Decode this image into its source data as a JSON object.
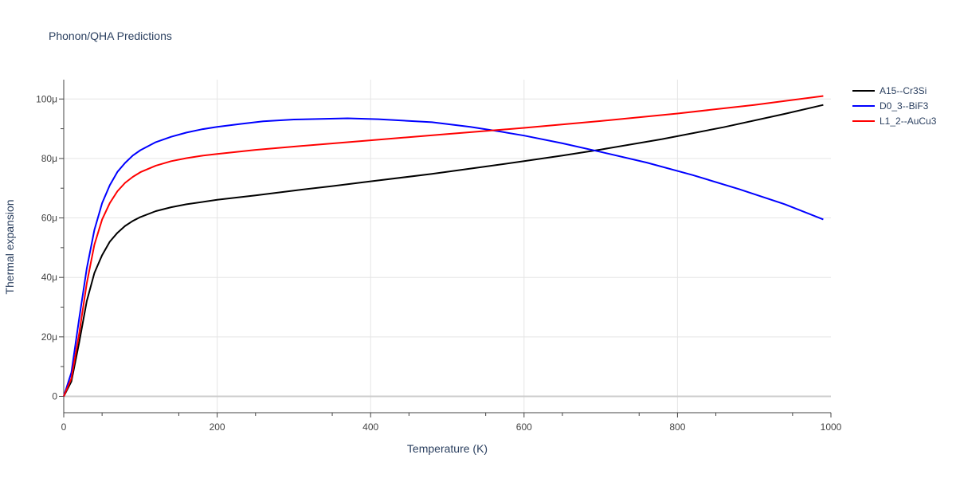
{
  "chart_data": {
    "type": "line",
    "title": "Phonon/QHA Predictions",
    "xlabel": "Temperature (K)",
    "ylabel": "Thermal expansion",
    "xlim": [
      0,
      1000
    ],
    "ylim": [
      -5.5,
      106.5
    ],
    "xticks": [
      0,
      200,
      400,
      600,
      800,
      1000
    ],
    "xtick_labels": [
      "0",
      "200",
      "400",
      "600",
      "800",
      "1000"
    ],
    "yticks": [
      0,
      20,
      40,
      60,
      80,
      100
    ],
    "ytick_labels": [
      "0",
      "20μ",
      "40μ",
      "60μ",
      "80μ",
      "100μ"
    ],
    "grid": true,
    "legend_position": "top-right",
    "series": [
      {
        "name": "A15--Cr3Si",
        "color": "#000000",
        "x": [
          0,
          10,
          20,
          30,
          40,
          50,
          60,
          70,
          80,
          90,
          100,
          120,
          140,
          160,
          200,
          250,
          300,
          350,
          400,
          480,
          550,
          600,
          650,
          700,
          780,
          860,
          940,
          990
        ],
        "y": [
          0,
          5,
          18,
          32,
          41.5,
          47.5,
          52,
          55,
          57.3,
          59,
          60.3,
          62.3,
          63.6,
          64.6,
          66.1,
          67.6,
          69.2,
          70.7,
          72.3,
          74.8,
          77.3,
          79.1,
          81,
          83,
          86.5,
          90.5,
          95,
          98
        ]
      },
      {
        "name": "D0_3--BiF3",
        "color": "#0000ff",
        "x": [
          0,
          10,
          20,
          30,
          40,
          50,
          60,
          70,
          80,
          90,
          100,
          120,
          140,
          160,
          180,
          200,
          230,
          260,
          300,
          370,
          410,
          480,
          530,
          570,
          600,
          650,
          700,
          760,
          820,
          880,
          940,
          990
        ],
        "y": [
          0,
          8,
          26,
          43,
          56,
          65,
          71,
          75.5,
          78.5,
          81,
          82.8,
          85.5,
          87.3,
          88.7,
          89.8,
          90.6,
          91.6,
          92.5,
          93.1,
          93.5,
          93.2,
          92.2,
          90.6,
          89,
          87.7,
          85.1,
          82.2,
          78.6,
          74.4,
          69.7,
          64.6,
          59.5
        ]
      },
      {
        "name": "L1_2--AuCu3",
        "color": "#ff0000",
        "x": [
          0,
          10,
          20,
          30,
          40,
          50,
          60,
          70,
          80,
          90,
          100,
          120,
          140,
          160,
          180,
          200,
          250,
          300,
          400,
          500,
          600,
          700,
          800,
          900,
          990
        ],
        "y": [
          0,
          6,
          21,
          38,
          51,
          59.5,
          65,
          69,
          71.8,
          73.8,
          75.4,
          77.6,
          79.1,
          80.1,
          80.9,
          81.5,
          82.9,
          84,
          86.1,
          88.2,
          90.3,
          92.6,
          95.1,
          98,
          101
        ]
      }
    ]
  }
}
